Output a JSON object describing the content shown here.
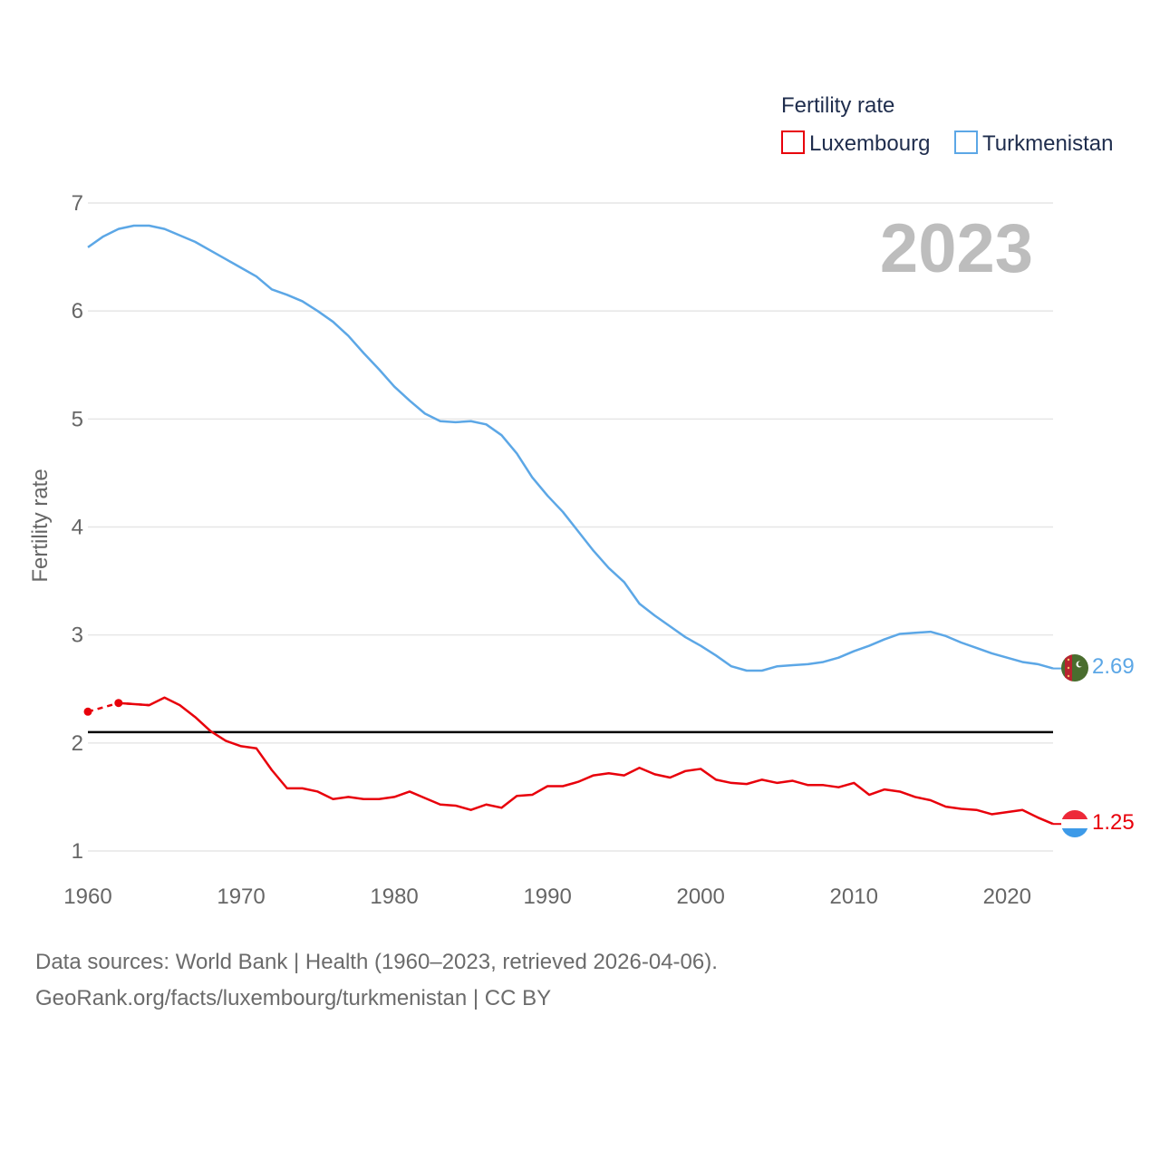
{
  "chart_data": {
    "type": "line",
    "legend_title": "Fertility rate",
    "ylabel": "Fertility rate",
    "year_label": "2023",
    "ylim": [
      1,
      7
    ],
    "xlim": [
      1960,
      2023
    ],
    "yticks": [
      "1",
      "2",
      "3",
      "4",
      "5",
      "6",
      "7"
    ],
    "xticks": [
      "1960",
      "1970",
      "1980",
      "1990",
      "2000",
      "2010",
      "2020"
    ],
    "reference_line": 2.1,
    "series": [
      {
        "name": "Luxembourg",
        "color": "#e8000b",
        "end_label": "1.25",
        "estimated_points": [
          [
            1960,
            2.29
          ],
          [
            1962,
            2.37
          ]
        ],
        "x": [
          1960,
          1962,
          1964,
          1965,
          1966,
          1967,
          1968,
          1969,
          1970,
          1971,
          1972,
          1973,
          1974,
          1975,
          1976,
          1977,
          1978,
          1979,
          1980,
          1981,
          1982,
          1983,
          1984,
          1985,
          1986,
          1987,
          1988,
          1989,
          1990,
          1991,
          1992,
          1993,
          1994,
          1995,
          1996,
          1997,
          1998,
          1999,
          2000,
          2001,
          2002,
          2003,
          2004,
          2005,
          2006,
          2007,
          2008,
          2009,
          2010,
          2011,
          2012,
          2013,
          2014,
          2015,
          2016,
          2017,
          2018,
          2019,
          2020,
          2021,
          2022,
          2023
        ],
        "values": [
          2.29,
          2.37,
          2.35,
          2.42,
          2.35,
          2.24,
          2.11,
          2.02,
          1.97,
          1.95,
          1.75,
          1.58,
          1.58,
          1.55,
          1.48,
          1.5,
          1.48,
          1.48,
          1.5,
          1.55,
          1.49,
          1.43,
          1.42,
          1.38,
          1.43,
          1.4,
          1.51,
          1.52,
          1.6,
          1.6,
          1.64,
          1.7,
          1.72,
          1.7,
          1.77,
          1.71,
          1.68,
          1.74,
          1.76,
          1.66,
          1.63,
          1.62,
          1.66,
          1.63,
          1.65,
          1.61,
          1.61,
          1.59,
          1.63,
          1.52,
          1.57,
          1.55,
          1.5,
          1.47,
          1.41,
          1.39,
          1.38,
          1.34,
          1.36,
          1.38,
          1.31,
          1.25
        ]
      },
      {
        "name": "Turkmenistan",
        "color": "#5ca7e6",
        "end_label": "2.69",
        "x": [
          1960,
          1961,
          1962,
          1963,
          1964,
          1965,
          1966,
          1967,
          1968,
          1969,
          1970,
          1971,
          1972,
          1973,
          1974,
          1975,
          1976,
          1977,
          1978,
          1979,
          1980,
          1981,
          1982,
          1983,
          1984,
          1985,
          1986,
          1987,
          1988,
          1989,
          1990,
          1991,
          1992,
          1993,
          1994,
          1995,
          1996,
          1997,
          1998,
          1999,
          2000,
          2001,
          2002,
          2003,
          2004,
          2005,
          2006,
          2007,
          2008,
          2009,
          2010,
          2011,
          2012,
          2013,
          2014,
          2015,
          2016,
          2017,
          2018,
          2019,
          2020,
          2021,
          2022,
          2023
        ],
        "values": [
          6.59,
          6.69,
          6.76,
          6.79,
          6.79,
          6.76,
          6.7,
          6.64,
          6.56,
          6.48,
          6.4,
          6.32,
          6.2,
          6.15,
          6.09,
          6.0,
          5.9,
          5.77,
          5.61,
          5.46,
          5.3,
          5.17,
          5.05,
          4.98,
          4.97,
          4.98,
          4.95,
          4.85,
          4.68,
          4.46,
          4.29,
          4.14,
          3.96,
          3.78,
          3.62,
          3.49,
          3.29,
          3.18,
          3.08,
          2.98,
          2.9,
          2.81,
          2.71,
          2.67,
          2.67,
          2.71,
          2.72,
          2.73,
          2.75,
          2.79,
          2.85,
          2.9,
          2.96,
          3.01,
          3.02,
          3.03,
          2.99,
          2.93,
          2.88,
          2.83,
          2.79,
          2.75,
          2.73,
          2.69
        ]
      }
    ]
  },
  "source": {
    "line1": "Data sources: World Bank | Health (1960–2023, retrieved 2026-04-06).",
    "line2": "GeoRank.org/facts/luxembourg/turkmenistan | CC BY"
  }
}
